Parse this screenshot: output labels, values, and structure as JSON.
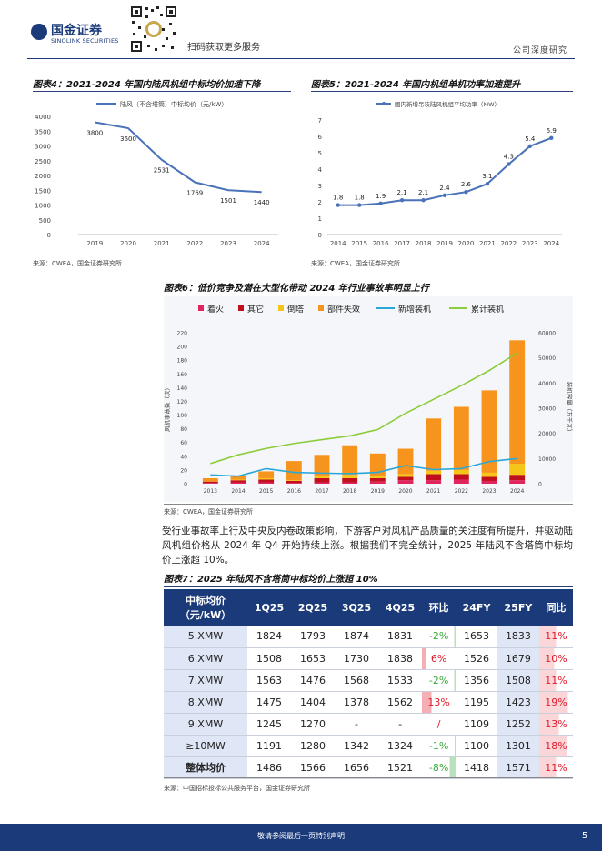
{
  "header": {
    "brand_cn": "国金证券",
    "brand_en": "SINOLINK SECURITIES",
    "scan_text": "扫码获取更多服务",
    "report_type": "公司深度研究"
  },
  "figure4": {
    "title": "图表4：2021-2024 年国内陆风机组中标均价加速下降",
    "source": "来源：CWEA，国金证券研究所"
  },
  "figure5": {
    "title": "图表5：2021-2024 年国内机组单机功率加速提升",
    "source": "来源：CWEA，国金证券研究所"
  },
  "figure6": {
    "title": "图表6：低价竞争及潜在大型化带动 2024 年行业事故率明显上行",
    "source": "来源：CWEA，国金证券研究所"
  },
  "paragraph": "受行业事故率上行及中央反内卷政策影响，下游客户对风机产品质量的关注度有所提升，并驱动陆风机组价格从 2024 年 Q4 开始持续上涨。根据我们不完全统计，2025 年陆风不含塔筒中标均价上涨超 10%。",
  "figure7": {
    "title": "图表7：2025 年陆风不含塔筒中标均价上涨超 10%",
    "source": "来源：中国招标投标公共服务平台，国金证券研究所",
    "headers": [
      "中标均价（元/kW）",
      "1Q25",
      "2Q25",
      "3Q25",
      "4Q25",
      "环比",
      "24FY",
      "25FY",
      "同比"
    ],
    "rows": [
      {
        "label": "5.XMW",
        "q1": "1824",
        "q2": "1793",
        "q3": "1874",
        "q4": "1831",
        "qoq": "-2%",
        "fy24": "1653",
        "fy25": "1833",
        "yoy": "11%",
        "qoq_val": -2,
        "yoy_val": 11
      },
      {
        "label": "6.XMW",
        "q1": "1508",
        "q2": "1653",
        "q3": "1730",
        "q4": "1838",
        "qoq": "6%",
        "fy24": "1526",
        "fy25": "1679",
        "yoy": "10%",
        "qoq_val": 6,
        "yoy_val": 10
      },
      {
        "label": "7.XMW",
        "q1": "1563",
        "q2": "1476",
        "q3": "1568",
        "q4": "1533",
        "qoq": "-2%",
        "fy24": "1356",
        "fy25": "1508",
        "yoy": "11%",
        "qoq_val": -2,
        "yoy_val": 11
      },
      {
        "label": "8.XMW",
        "q1": "1475",
        "q2": "1404",
        "q3": "1378",
        "q4": "1562",
        "qoq": "13%",
        "fy24": "1195",
        "fy25": "1423",
        "yoy": "19%",
        "qoq_val": 13,
        "yoy_val": 19
      },
      {
        "label": "9.XMW",
        "q1": "1245",
        "q2": "1270",
        "q3": "-",
        "q4": "-",
        "qoq": "/",
        "fy24": "1109",
        "fy25": "1252",
        "yoy": "13%",
        "qoq_val": null,
        "yoy_val": 13
      },
      {
        "label": "≥10MW",
        "q1": "1191",
        "q2": "1280",
        "q3": "1342",
        "q4": "1324",
        "qoq": "-1%",
        "fy24": "1100",
        "fy25": "1301",
        "yoy": "18%",
        "qoq_val": -1,
        "yoy_val": 18
      },
      {
        "label": "整体均价",
        "q1": "1486",
        "q2": "1566",
        "q3": "1656",
        "q4": "1521",
        "qoq": "-8%",
        "fy24": "1418",
        "fy25": "1571",
        "yoy": "11%",
        "qoq_val": -8,
        "yoy_val": 11
      }
    ]
  },
  "footer": {
    "disclaimer": "敬请参阅最后一页特别声明",
    "page_number": "5"
  },
  "colors": {
    "brand": "#1b3a7a",
    "line_blue": "#4a72b8",
    "fire": "#e0245e",
    "other": "#c0101e",
    "collapse": "#f5c518",
    "part_failure": "#f7941d",
    "new_install": "#29a8d8",
    "cum_install": "#8ccc3a",
    "pos_red": "#e21a2a",
    "neg_green": "#3aaa3a"
  },
  "chart_data": [
    {
      "id": "fig4",
      "type": "line",
      "legend": "陆风（不含塔筒）中标均价（元/kW）",
      "x": [
        "2019",
        "2020",
        "2021",
        "2022",
        "2023",
        "2024"
      ],
      "values": [
        3800,
        3600,
        2531,
        1769,
        1501,
        1440
      ],
      "labels": [
        "3800",
        "3600",
        "2531",
        "1769",
        "1501",
        "1440"
      ],
      "yticks": [
        "4000",
        "3500",
        "3000",
        "2500",
        "2000",
        "1500",
        "1000",
        "500",
        "0"
      ],
      "ylim": [
        0,
        4000
      ]
    },
    {
      "id": "fig5",
      "type": "line",
      "legend": "国内新增吊装陆风机组平均功率（MW）",
      "x": [
        "2014",
        "2015",
        "2016",
        "2017",
        "2018",
        "2019",
        "2020",
        "2021",
        "2022",
        "2023",
        "2024"
      ],
      "values": [
        1.8,
        1.8,
        1.9,
        2.1,
        2.1,
        2.4,
        2.6,
        3.1,
        4.3,
        5.4,
        5.9
      ],
      "labels": [
        "1.8",
        "1.8",
        "1.9",
        "2.1",
        "2.1",
        "2.4",
        "2.6",
        "3.1",
        "4.3",
        "5.4",
        "5.9"
      ],
      "yticks": [
        "7",
        "6",
        "5",
        "4",
        "3",
        "2",
        "1",
        "0"
      ],
      "ylim": [
        0,
        7
      ]
    },
    {
      "id": "fig6",
      "type": "bar",
      "categories": [
        "2013",
        "2014",
        "2015",
        "2016",
        "2017",
        "2018",
        "2019",
        "2020",
        "2021",
        "2022",
        "2023",
        "2024"
      ],
      "stacked_series": [
        {
          "name": "着火",
          "values": [
            1,
            2,
            2,
            1,
            2,
            2,
            3,
            5,
            5,
            6,
            4,
            5
          ]
        },
        {
          "name": "其它",
          "values": [
            2,
            3,
            4,
            3,
            6,
            6,
            5,
            5,
            9,
            8,
            6,
            8
          ]
        },
        {
          "name": "倒塔",
          "values": [
            0,
            1,
            2,
            1,
            4,
            5,
            4,
            4,
            5,
            6,
            6,
            16
          ]
        },
        {
          "name": "部件失效",
          "values": [
            5,
            6,
            10,
            28,
            30,
            43,
            32,
            37,
            76,
            92,
            120,
            180
          ]
        }
      ],
      "line_series": [
        {
          "name": "新增装机",
          "values": [
            3500,
            3000,
            6000,
            4500,
            4200,
            4000,
            4500,
            7200,
            5600,
            6000,
            8800,
            10000
          ]
        },
        {
          "name": "累计装机",
          "values": [
            8000,
            11500,
            14000,
            16000,
            17500,
            19000,
            21500,
            28000,
            33500,
            39000,
            45000,
            52000
          ]
        }
      ],
      "ylabel_left": "风机事故数（次）",
      "ylabel_right": "装机容量（万千瓦）",
      "yticks_left": [
        "220",
        "200",
        "180",
        "160",
        "140",
        "120",
        "100",
        "80",
        "60",
        "40",
        "20",
        "0"
      ],
      "yticks_right": [
        "60000",
        "50000",
        "40000",
        "30000",
        "20000",
        "10000",
        "0"
      ],
      "ylim_left": [
        0,
        220
      ],
      "ylim_right": [
        0,
        60000
      ]
    }
  ]
}
